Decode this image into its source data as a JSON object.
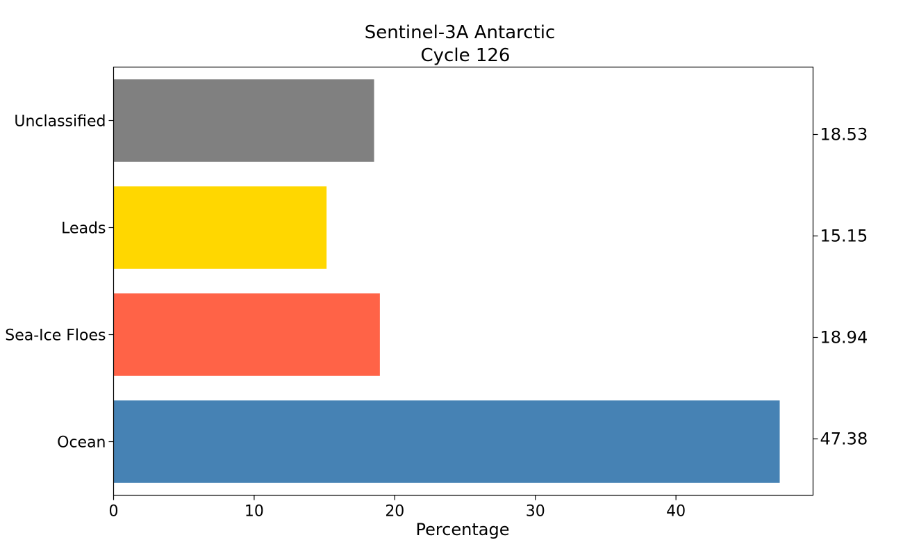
{
  "chart_data": {
    "type": "bar",
    "orientation": "horizontal",
    "title_lines": [
      "Sentinel-3A Antarctic",
      "Cycle 126"
    ],
    "categories": [
      "Ocean",
      "Sea-Ice Floes",
      "Leads",
      "Unclassified"
    ],
    "values": [
      47.38,
      18.94,
      15.15,
      18.53
    ],
    "value_labels": [
      "47.38",
      "18.94",
      "15.15",
      "18.53"
    ],
    "colors": [
      "#4682b4",
      "#ff6347",
      "#ffd700",
      "#808080"
    ],
    "xlabel": "Percentage",
    "ylabel": "",
    "xlim": [
      0,
      49.75
    ],
    "xticks": [
      0,
      10,
      20,
      30,
      40
    ],
    "xtick_labels": [
      "0",
      "10",
      "20",
      "30",
      "40"
    ],
    "grid": false,
    "legend": "none"
  }
}
